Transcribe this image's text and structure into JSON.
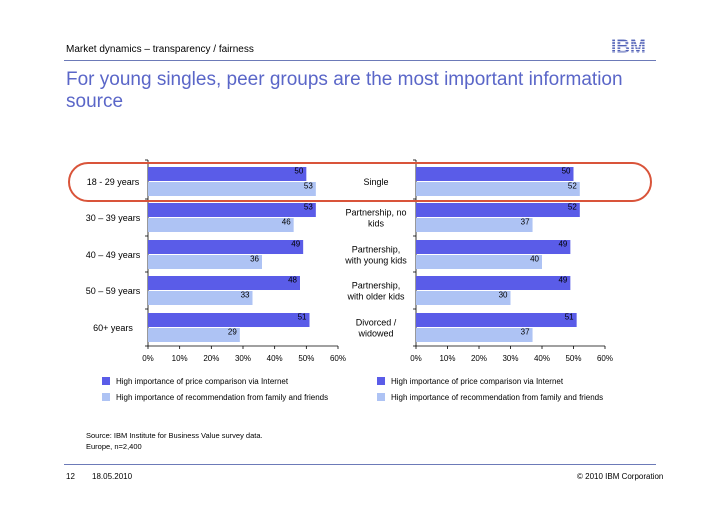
{
  "header": {
    "breadcrumb": "Market dynamics – transparency / fairness",
    "logo_text": "IBM",
    "title": "For young singles, peer groups are the most important information source"
  },
  "colors": {
    "series1": "#5a5ce8",
    "series2": "#aec3f4",
    "accent": "#5a66c8",
    "highlight": "#d9543a"
  },
  "chart_data": [
    {
      "type": "bar",
      "orientation": "horizontal",
      "categories": [
        "18 - 29 years",
        "30 – 39 years",
        "40 – 49 years",
        "50 – 59 years",
        "60+ years"
      ],
      "series": [
        {
          "name": "High importance of price comparison via Internet",
          "values": [
            50,
            53,
            49,
            48,
            51
          ]
        },
        {
          "name": "High importance of recommendation from family and friends",
          "values": [
            53,
            46,
            36,
            33,
            29
          ]
        }
      ],
      "xlim": [
        0,
        60
      ],
      "xticks": [
        "0%",
        "10%",
        "20%",
        "30%",
        "40%",
        "50%",
        "60%"
      ],
      "legend": "bottom"
    },
    {
      "type": "bar",
      "orientation": "horizontal",
      "categories": [
        "Single",
        "Partnership, no kids",
        "Partnership, with young kids",
        "Partnership, with older kids",
        "Divorced / widowed"
      ],
      "series": [
        {
          "name": "High importance of price comparison via Internet",
          "values": [
            50,
            52,
            49,
            49,
            51
          ]
        },
        {
          "name": "High importance of recommendation from family and friends",
          "values": [
            52,
            37,
            40,
            30,
            37
          ]
        }
      ],
      "xlim": [
        0,
        60
      ],
      "xticks": [
        "0%",
        "10%",
        "20%",
        "30%",
        "40%",
        "50%",
        "60%"
      ],
      "legend": "bottom"
    }
  ],
  "source": {
    "line1": "Source: IBM Institute for Business Value survey data.",
    "line2": "Europe, n=2,400"
  },
  "footer": {
    "page": "12",
    "date": "18.05.2010",
    "copyright": "© 2010 IBM Corporation"
  }
}
